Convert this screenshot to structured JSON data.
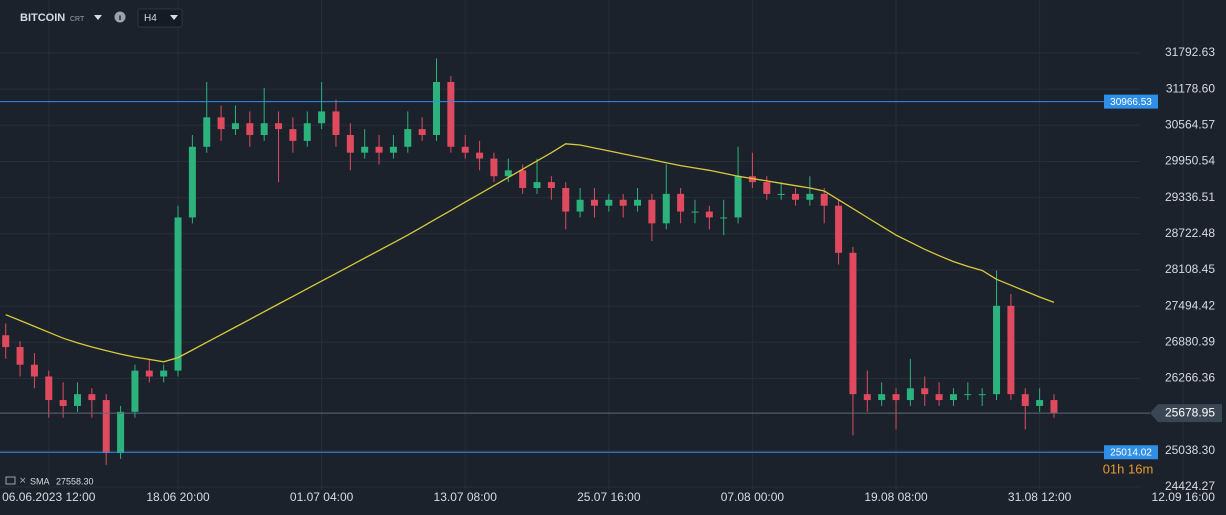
{
  "chart_data": {
    "type": "candlestick",
    "symbol": "BITCOIN",
    "symbol_tag": "CRT",
    "timeframe": "H4",
    "countdown": "01h 16m",
    "up_color": "#2cb27c",
    "down_color": "#e04a5f",
    "ylim": [
      24373,
      32692
    ],
    "yticks": [
      31792.63,
      {
        "value": 31178.6,
        "label": "31178.60"
      },
      30564.57,
      29950.54,
      29336.51,
      28722.48,
      28108.45,
      27494.42,
      26880.39,
      26266.36,
      {
        "value": 25038.3,
        "label": "25038.30"
      },
      24424.27
    ],
    "grid": true,
    "levels": [
      {
        "value": 30966.53,
        "color": "#2f8fe6"
      },
      {
        "value": 25014.02,
        "color": "#2f8fe6"
      }
    ],
    "categories": [
      null,
      null,
      null,
      "06.06.2023  12:00",
      null,
      null,
      null,
      null,
      null,
      null,
      null,
      null,
      "18.06  20:00",
      null,
      null,
      null,
      null,
      null,
      null,
      null,
      null,
      null,
      "01.07  04:00",
      null,
      null,
      null,
      null,
      null,
      null,
      null,
      null,
      null,
      "13.07  08:00",
      null,
      null,
      null,
      null,
      null,
      null,
      null,
      null,
      null,
      "25.07  16:00",
      null,
      null,
      null,
      null,
      null,
      null,
      null,
      null,
      null,
      "07.08  00:00",
      null,
      null,
      null,
      null,
      null,
      null,
      null,
      null,
      null,
      "19.08  08:00",
      null,
      null,
      null,
      null,
      null,
      null,
      null,
      null,
      null,
      "31.08  12:00",
      null,
      null,
      null,
      null,
      null,
      null,
      null,
      null,
      null,
      "12.09  16:00"
    ],
    "ohlc": [
      [
        27000,
        27200,
        26600,
        26800
      ],
      [
        26800,
        26900,
        26300,
        26500
      ],
      [
        26500,
        26700,
        26100,
        26300
      ],
      [
        26300,
        26400,
        25600,
        25900
      ],
      [
        25900,
        26200,
        25600,
        25800
      ],
      [
        25800,
        26200,
        25700,
        26000
      ],
      [
        26000,
        26100,
        25600,
        25900
      ],
      [
        25900,
        26000,
        24800,
        25000
      ],
      [
        25000,
        25800,
        24900,
        25700
      ],
      [
        25700,
        26500,
        25600,
        26400
      ],
      [
        26400,
        26600,
        26200,
        26300
      ],
      [
        26300,
        26500,
        26200,
        26400
      ],
      [
        26400,
        29200,
        26300,
        29000
      ],
      [
        29000,
        30400,
        28900,
        30200
      ],
      [
        30200,
        31300,
        30100,
        30700
      ],
      [
        30700,
        30900,
        30300,
        30500
      ],
      [
        30500,
        30900,
        30400,
        30600
      ],
      [
        30600,
        30800,
        30200,
        30400
      ],
      [
        30400,
        31200,
        30300,
        30600
      ],
      [
        30600,
        30800,
        29600,
        30500
      ],
      [
        30500,
        30700,
        30100,
        30300
      ],
      [
        30300,
        30800,
        30200,
        30600
      ],
      [
        30600,
        31300,
        30500,
        30800
      ],
      [
        30800,
        31000,
        30200,
        30400
      ],
      [
        30400,
        30600,
        29800,
        30100
      ],
      [
        30100,
        30500,
        30000,
        30200
      ],
      [
        30200,
        30400,
        29900,
        30100
      ],
      [
        30100,
        30400,
        30000,
        30200
      ],
      [
        30200,
        30800,
        30100,
        30500
      ],
      [
        30500,
        30700,
        30300,
        30400
      ],
      [
        30400,
        31700,
        30300,
        31300
      ],
      [
        31300,
        31400,
        30100,
        30200
      ],
      [
        30200,
        30400,
        30000,
        30100
      ],
      [
        30100,
        30300,
        29800,
        30000
      ],
      [
        30000,
        30100,
        29600,
        29700
      ],
      [
        29700,
        30000,
        29600,
        29800
      ],
      [
        29800,
        29900,
        29400,
        29500
      ],
      [
        29500,
        30000,
        29400,
        29600
      ],
      [
        29600,
        29700,
        29300,
        29500
      ],
      [
        29500,
        29600,
        28800,
        29100
      ],
      [
        29100,
        29500,
        29000,
        29300
      ],
      [
        29300,
        29500,
        29000,
        29200
      ],
      [
        29200,
        29400,
        29100,
        29300
      ],
      [
        29300,
        29400,
        29000,
        29200
      ],
      [
        29200,
        29500,
        29100,
        29300
      ],
      [
        29300,
        29400,
        28600,
        28900
      ],
      [
        28900,
        29900,
        28800,
        29400
      ],
      [
        29400,
        29500,
        28900,
        29100
      ],
      [
        29100,
        29300,
        28900,
        29100
      ],
      [
        29100,
        29200,
        28800,
        29000
      ],
      [
        29000,
        29300,
        28700,
        29000
      ],
      [
        29000,
        30200,
        28900,
        29700
      ],
      [
        29700,
        30100,
        29500,
        29600
      ],
      [
        29600,
        29700,
        29300,
        29400
      ],
      [
        29400,
        29600,
        29300,
        29400
      ],
      [
        29400,
        29500,
        29200,
        29300
      ],
      [
        29300,
        29700,
        29200,
        29400
      ],
      [
        29400,
        29500,
        28900,
        29200
      ],
      [
        29200,
        29300,
        28200,
        28400
      ],
      [
        28400,
        28500,
        25300,
        26000
      ],
      [
        26000,
        26400,
        25700,
        25900
      ],
      [
        25900,
        26200,
        25800,
        26000
      ],
      [
        26000,
        26100,
        25400,
        25900
      ],
      [
        25900,
        26600,
        25800,
        26100
      ],
      [
        26100,
        26300,
        25800,
        26000
      ],
      [
        26000,
        26200,
        25800,
        25900
      ],
      [
        25900,
        26100,
        25800,
        26000
      ],
      [
        26000,
        26200,
        25900,
        26000
      ],
      [
        26000,
        26100,
        25800,
        26000
      ],
      [
        26000,
        28100,
        25900,
        27500
      ],
      [
        27500,
        27700,
        25900,
        26000
      ],
      [
        26000,
        26100,
        25400,
        25800
      ],
      [
        25800,
        26100,
        25700,
        25900
      ],
      [
        25900,
        26000,
        25600,
        25678.95
      ],
      null,
      null,
      null,
      null,
      null,
      null,
      null,
      null,
      null
    ],
    "sma": {
      "name": "SMA",
      "color": "#d9c93b",
      "legend_value": "27558.30",
      "values": [
        27350,
        27250,
        27150,
        27050,
        26950,
        26870,
        26800,
        26740,
        26680,
        26630,
        26590,
        26550,
        26620,
        26750,
        26880,
        27010,
        27140,
        27270,
        27400,
        27530,
        27660,
        27790,
        27920,
        28050,
        28180,
        28310,
        28440,
        28570,
        28700,
        28840,
        28980,
        29120,
        29260,
        29400,
        29540,
        29680,
        29820,
        29960,
        30100,
        30250,
        30230,
        30180,
        30130,
        30080,
        30030,
        29980,
        29930,
        29880,
        29840,
        29800,
        29750,
        29700,
        29660,
        29620,
        29580,
        29540,
        29500,
        29450,
        29300,
        29150,
        29000,
        28850,
        28700,
        28580,
        28460,
        28350,
        28250,
        28170,
        28100,
        27950,
        27850,
        27750,
        27650,
        27558.3,
        null,
        null,
        null,
        null,
        null,
        null,
        null,
        null,
        null
      ]
    }
  }
}
